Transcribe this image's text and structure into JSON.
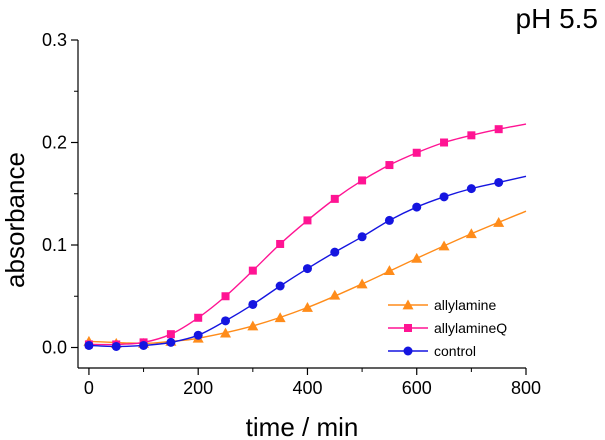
{
  "chart_data": {
    "type": "line",
    "title": "pH 5.5",
    "xlabel": "time / min",
    "ylabel": "absorbance",
    "xlim": [
      -20,
      800
    ],
    "ylim": [
      -0.02,
      0.3
    ],
    "xticks": [
      0,
      200,
      400,
      600,
      800
    ],
    "yticks": [
      0.0,
      0.1,
      0.2,
      0.3
    ],
    "xtick_labels": [
      "0",
      "200",
      "400",
      "600",
      "800"
    ],
    "ytick_labels": [
      "0.0",
      "0.1",
      "0.2",
      "0.3"
    ],
    "legend_position": "lower-right",
    "grid": false,
    "series": [
      {
        "name": "allylamine",
        "color": "#ff8c1a",
        "marker": "triangle",
        "x": [
          0,
          50,
          100,
          150,
          200,
          250,
          300,
          350,
          400,
          450,
          500,
          550,
          600,
          650,
          700,
          750
        ],
        "y": [
          0.006,
          0.004,
          0.004,
          0.006,
          0.009,
          0.014,
          0.021,
          0.029,
          0.039,
          0.051,
          0.062,
          0.075,
          0.087,
          0.099,
          0.111,
          0.122
        ],
        "curve_x": [
          0,
          100,
          150,
          200,
          300,
          400,
          500,
          600,
          700,
          800
        ],
        "curve_y": [
          0.006,
          0.004,
          0.006,
          0.009,
          0.021,
          0.039,
          0.062,
          0.087,
          0.111,
          0.133
        ]
      },
      {
        "name": "allylamineQ",
        "color": "#ff1493",
        "marker": "square",
        "x": [
          0,
          50,
          100,
          150,
          200,
          250,
          300,
          350,
          400,
          450,
          500,
          550,
          600,
          650,
          700,
          750
        ],
        "y": [
          0.003,
          0.003,
          0.005,
          0.013,
          0.029,
          0.05,
          0.075,
          0.101,
          0.124,
          0.145,
          0.163,
          0.178,
          0.19,
          0.2,
          0.207,
          0.213
        ],
        "curve_x": [
          0,
          50,
          100,
          150,
          200,
          250,
          300,
          350,
          400,
          450,
          500,
          550,
          600,
          650,
          700,
          750,
          800
        ],
        "curve_y": [
          0.003,
          0.003,
          0.005,
          0.013,
          0.029,
          0.05,
          0.075,
          0.101,
          0.124,
          0.145,
          0.163,
          0.178,
          0.19,
          0.2,
          0.207,
          0.213,
          0.218
        ]
      },
      {
        "name": "control",
        "color": "#1515e0",
        "marker": "circle",
        "x": [
          0,
          50,
          100,
          150,
          200,
          250,
          300,
          350,
          400,
          450,
          500,
          550,
          600,
          650,
          700,
          750
        ],
        "y": [
          0.002,
          0.001,
          0.002,
          0.005,
          0.012,
          0.026,
          0.042,
          0.06,
          0.077,
          0.093,
          0.108,
          0.124,
          0.137,
          0.147,
          0.155,
          0.161
        ],
        "curve_x": [
          0,
          50,
          100,
          150,
          200,
          250,
          300,
          350,
          400,
          450,
          500,
          550,
          600,
          650,
          700,
          750,
          800
        ],
        "curve_y": [
          0.002,
          0.001,
          0.002,
          0.005,
          0.012,
          0.026,
          0.042,
          0.06,
          0.077,
          0.093,
          0.108,
          0.124,
          0.137,
          0.147,
          0.155,
          0.161,
          0.167
        ]
      }
    ]
  }
}
